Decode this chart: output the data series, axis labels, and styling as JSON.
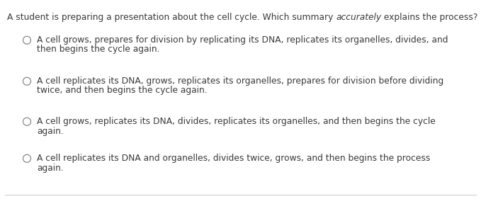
{
  "background_color": "#ffffff",
  "border_color": "#cccccc",
  "question_pre": "A student is preparing a presentation about the cell cycle. Which summary ",
  "question_italic": "accurately",
  "question_post": " explains the process?",
  "choices": [
    [
      "A cell grows, prepares for division by replicating its DNA, replicates its organelles, divides, and",
      "then begins the cycle again."
    ],
    [
      "A cell replicates its DNA, grows, replicates its organelles, prepares for division before dividing",
      "twice, and then begins the cycle again."
    ],
    [
      "A cell grows, replicates its DNA, divides, replicates its organelles, and then begins the cycle",
      "again."
    ],
    [
      "A cell replicates its DNA and organelles, divides twice, grows, and then begins the process",
      "again."
    ]
  ],
  "font_size": 8.8,
  "text_color": "#3a3a3a",
  "circle_color": "#888888",
  "fig_width": 6.79,
  "fig_height": 2.81,
  "dpi": 100
}
